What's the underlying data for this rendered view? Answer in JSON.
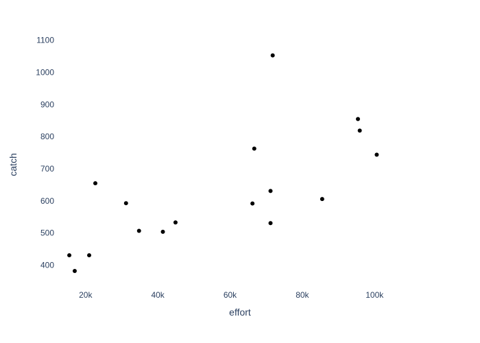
{
  "chart_data": {
    "type": "scatter",
    "title": "",
    "xlabel": "effort",
    "ylabel": "catch",
    "xlim": [
      11500,
      114000
    ],
    "ylim": [
      350,
      1140
    ],
    "x_ticks": [
      20000,
      40000,
      60000,
      80000,
      100000
    ],
    "x_tick_labels": [
      "20k",
      "40k",
      "60k",
      "80k",
      "100k"
    ],
    "y_ticks": [
      400,
      500,
      600,
      700,
      800,
      900,
      1000,
      1100
    ],
    "y_tick_labels": [
      "400",
      "500",
      "600",
      "700",
      "800",
      "900",
      "1000",
      "1100"
    ],
    "grid": false,
    "legend": "none",
    "marker_color": "#000000",
    "text_color": "#2a3f5f",
    "points": [
      {
        "x": 15500,
        "y": 431
      },
      {
        "x": 17000,
        "y": 382
      },
      {
        "x": 21000,
        "y": 431
      },
      {
        "x": 22700,
        "y": 655
      },
      {
        "x": 31200,
        "y": 593
      },
      {
        "x": 34800,
        "y": 507
      },
      {
        "x": 41400,
        "y": 504
      },
      {
        "x": 44900,
        "y": 533
      },
      {
        "x": 66200,
        "y": 592
      },
      {
        "x": 66700,
        "y": 763
      },
      {
        "x": 71200,
        "y": 631
      },
      {
        "x": 71200,
        "y": 531
      },
      {
        "x": 71800,
        "y": 1053
      },
      {
        "x": 85500,
        "y": 606
      },
      {
        "x": 95400,
        "y": 855
      },
      {
        "x": 95900,
        "y": 819
      },
      {
        "x": 100600,
        "y": 744
      }
    ]
  }
}
